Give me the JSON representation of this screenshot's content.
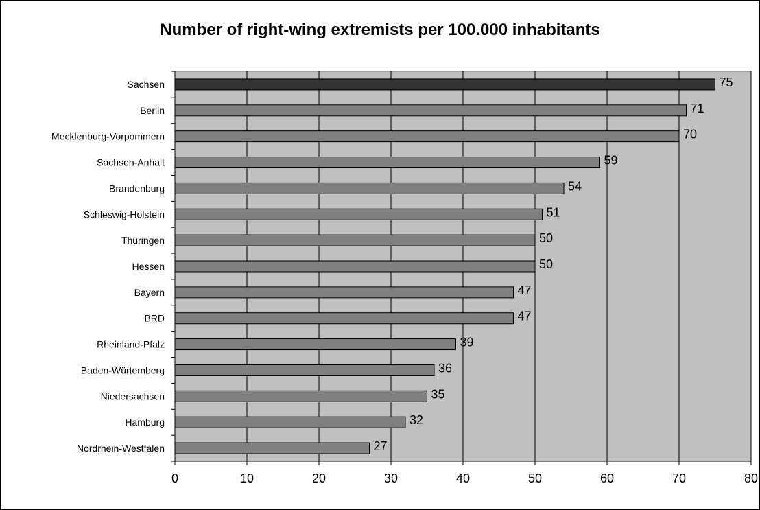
{
  "chart_data": {
    "type": "bar",
    "orientation": "horizontal",
    "title": "Number of right-wing extremists per 100.000 inhabitants",
    "xlabel": "",
    "ylabel": "",
    "xlim": [
      0,
      80
    ],
    "x_ticks": [
      0,
      10,
      20,
      30,
      40,
      50,
      60,
      70,
      80
    ],
    "grid": "vertical",
    "legend": "none",
    "categories": [
      "Sachsen",
      "Berlin",
      "Mecklenburg-Vorpommern",
      "Sachsen-Anhalt",
      "Brandenburg",
      "Schleswig-Holstein",
      "Thüringen",
      "Hessen",
      "Bayern",
      "BRD",
      "Rheinland-Pfalz",
      "Baden-Würtemberg",
      "Niedersachsen",
      "Hamburg",
      "Nordrhein-Westfalen"
    ],
    "values": [
      75,
      71,
      70,
      59,
      54,
      51,
      50,
      50,
      47,
      47,
      39,
      36,
      35,
      32,
      27
    ],
    "highlight_index": 0,
    "colors": {
      "plot_background": "#c0c0c0",
      "bar": "#808080",
      "highlight_bar": "#333333",
      "gridline": "#000000"
    }
  }
}
